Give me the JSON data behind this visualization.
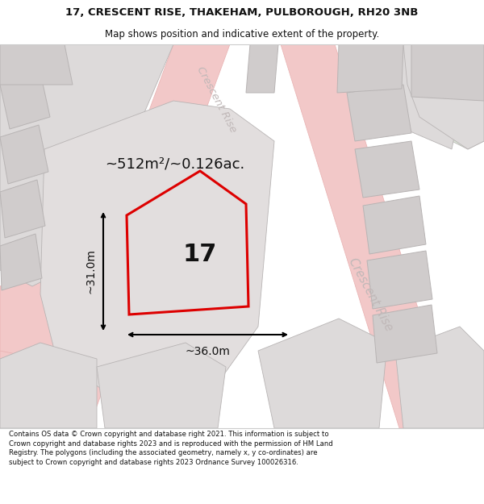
{
  "title_line1": "17, CRESCENT RISE, THAKEHAM, PULBOROUGH, RH20 3NB",
  "title_line2": "Map shows position and indicative extent of the property.",
  "area_label": "~512m²/~0.126ac.",
  "plot_number": "17",
  "dim_width": "~36.0m",
  "dim_height": "~31.0m",
  "road_label_right": "Crescent Rise",
  "road_label_top": "Crescent Rise",
  "footer_text": "Contains OS data © Crown copyright and database right 2021. This information is subject to Crown copyright and database rights 2023 and is reproduced with the permission of HM Land Registry. The polygons (including the associated geometry, namely x, y co-ordinates) are subject to Crown copyright and database rights 2023 Ordnance Survey 100026316.",
  "map_bg": "#f7f4f4",
  "plot_fill": "#e2dede",
  "plot_outline": "#dd0000",
  "building_fill": "#d0cccc",
  "building_edge": "#b8b4b4",
  "road_fill": "#f2c8c8",
  "road_edge": "#e8b0b0",
  "gray_parcel": "#dddada",
  "green_parcel": "#dce8d8",
  "text_color": "#111111",
  "road_text_color": "#c0b8b8",
  "header_bg": "#ffffff",
  "footer_bg": "#ffffff",
  "divider_color": "#cccccc"
}
